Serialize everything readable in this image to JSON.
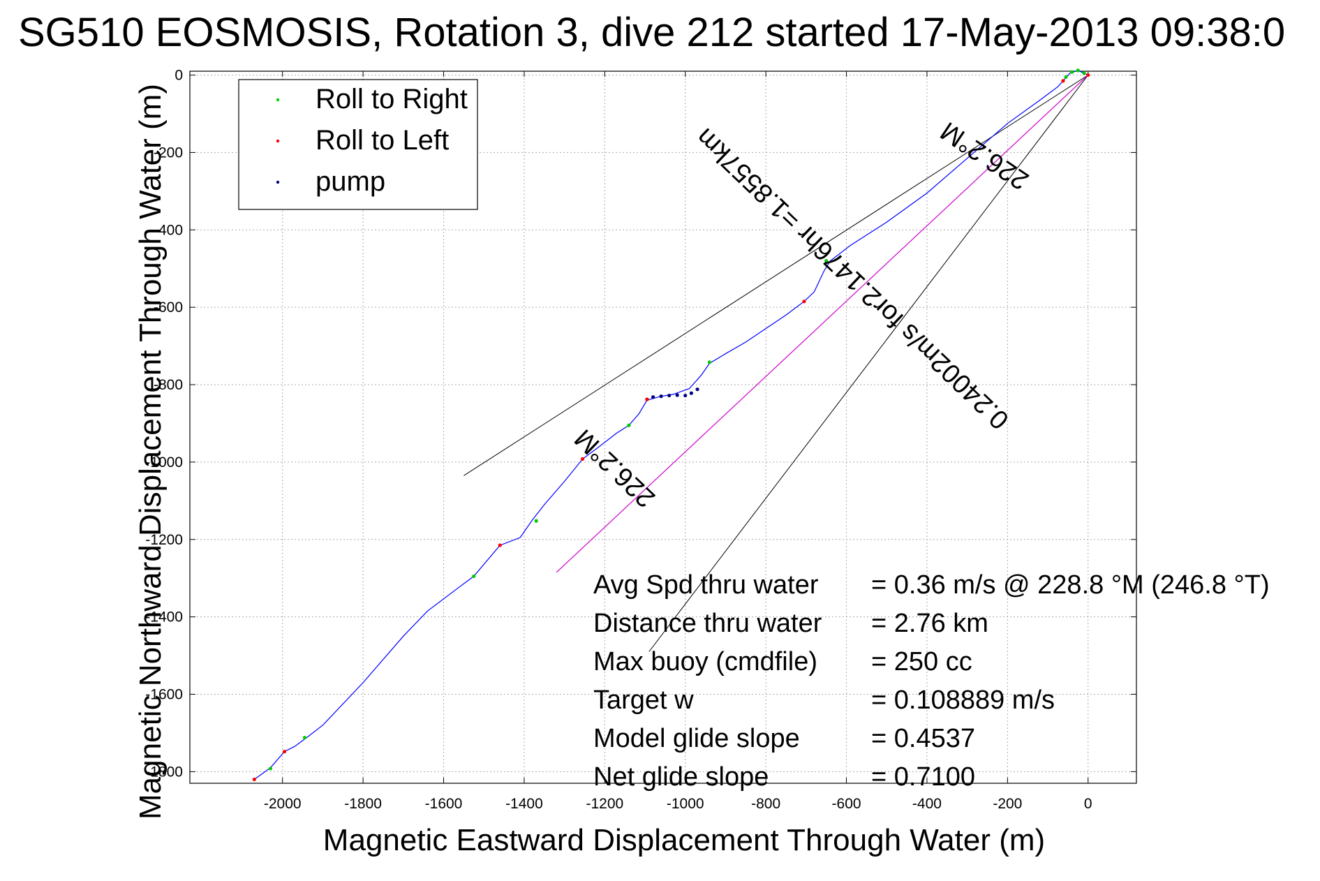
{
  "chart_data": {
    "type": "line",
    "title": "SG510 EOSMOSIS, Rotation 3, dive 212 started 17-May-2013 09:38:0",
    "xlabel": "Magnetic Eastward Displacement Through Water (m)",
    "ylabel": "Magnetic Northward Displacement Through Water (m)",
    "xlim": [
      -2230,
      120
    ],
    "ylim": [
      -1830,
      10
    ],
    "xticks": [
      -2000,
      -1800,
      -1600,
      -1400,
      -1200,
      -1000,
      -800,
      -600,
      -400,
      -200,
      0
    ],
    "yticks": [
      0,
      -200,
      -400,
      -600,
      -800,
      -1000,
      -1200,
      -1400,
      -1600,
      -1800
    ],
    "grid": true,
    "legend_position": "top-left",
    "legend": [
      {
        "label": "Roll to Right",
        "color": "#00cc00"
      },
      {
        "label": "Roll to Left",
        "color": "#ff0000"
      },
      {
        "label": "pump",
        "color": "#000080"
      }
    ],
    "colors": {
      "track": "#0000ff",
      "heading_line": "#cc00cc",
      "envelope": "#000000",
      "roll_right": "#00cc00",
      "roll_left": "#ff0000",
      "pump": "#000080"
    },
    "track": [
      [
        0,
        0
      ],
      [
        -10,
        5
      ],
      [
        -25,
        12
      ],
      [
        -45,
        5
      ],
      [
        -62,
        -15
      ],
      [
        -75,
        -30
      ],
      [
        -120,
        -65
      ],
      [
        -200,
        -125
      ],
      [
        -300,
        -215
      ],
      [
        -400,
        -305
      ],
      [
        -500,
        -380
      ],
      [
        -590,
        -440
      ],
      [
        -640,
        -480
      ],
      [
        -655,
        -505
      ],
      [
        -680,
        -560
      ],
      [
        -705,
        -585
      ],
      [
        -750,
        -620
      ],
      [
        -850,
        -690
      ],
      [
        -900,
        -720
      ],
      [
        -940,
        -745
      ],
      [
        -960,
        -775
      ],
      [
        -990,
        -810
      ],
      [
        -1030,
        -825
      ],
      [
        -1060,
        -830
      ],
      [
        -1095,
        -840
      ],
      [
        -1115,
        -875
      ],
      [
        -1140,
        -905
      ],
      [
        -1170,
        -925
      ],
      [
        -1220,
        -965
      ],
      [
        -1255,
        -992
      ],
      [
        -1300,
        -1050
      ],
      [
        -1350,
        -1110
      ],
      [
        -1380,
        -1150
      ],
      [
        -1410,
        -1195
      ],
      [
        -1460,
        -1215
      ],
      [
        -1525,
        -1295
      ],
      [
        -1570,
        -1330
      ],
      [
        -1640,
        -1385
      ],
      [
        -1700,
        -1450
      ],
      [
        -1800,
        -1570
      ],
      [
        -1900,
        -1680
      ],
      [
        -1940,
        -1712
      ],
      [
        -1970,
        -1735
      ],
      [
        -1995,
        -1748
      ],
      [
        -2030,
        -1790
      ],
      [
        -2070,
        -1820
      ]
    ],
    "heading_line": [
      [
        0,
        0
      ],
      [
        -1320,
        -1285
      ]
    ],
    "envelope_lines": [
      [
        [
          0,
          0
        ],
        [
          -1550,
          -1035
        ]
      ],
      [
        [
          0,
          0
        ],
        [
          -1090,
          -1490
        ]
      ]
    ],
    "roll_right_points": [
      [
        -10,
        5
      ],
      [
        -25,
        12
      ],
      [
        -40,
        8
      ],
      [
        -55,
        -5
      ],
      [
        -650,
        -480
      ],
      [
        -940,
        -742
      ],
      [
        -1140,
        -905
      ],
      [
        -1370,
        -1152
      ],
      [
        -1525,
        -1295
      ],
      [
        -1945,
        -1712
      ],
      [
        -2030,
        -1792
      ]
    ],
    "roll_left_points": [
      [
        0,
        0
      ],
      [
        -62,
        -15
      ],
      [
        -705,
        -585
      ],
      [
        -1095,
        -838
      ],
      [
        -1255,
        -992
      ],
      [
        -1460,
        -1215
      ],
      [
        -1995,
        -1748
      ],
      [
        -2070,
        -1820
      ]
    ],
    "pump_points": [
      [
        -1095,
        -838
      ],
      [
        -1080,
        -832
      ],
      [
        -1060,
        -830
      ],
      [
        -1040,
        -828
      ],
      [
        -1020,
        -827
      ],
      [
        -1000,
        -828
      ],
      [
        -985,
        -822
      ],
      [
        -970,
        -812
      ]
    ],
    "annotations": [
      {
        "text": "226.2°M",
        "x": -1160,
        "y": -1000,
        "rotate": 223.8
      },
      {
        "text": "226.2°M",
        "x": -245,
        "y": -190,
        "rotate": 213.8
      },
      {
        "text": "0.24002m/s for2.1476hr =1.8557km",
        "x": -570,
        "y": -510,
        "rotate": 223.8
      }
    ],
    "stats": [
      {
        "label": "Avg Spd thru water",
        "value": "=  0.36 m/s @ 228.8 °M (246.8 °T)"
      },
      {
        "label": "Distance thru water",
        "value": "=  2.76 km"
      },
      {
        "label": "Max buoy (cmdfile)",
        "value": "= 250 cc"
      },
      {
        "label": "Target w",
        "value": "= 0.108889 m/s"
      },
      {
        "label": "Model glide slope",
        "value": "= 0.4537"
      },
      {
        "label": "Net glide slope",
        "value": "= 0.7100"
      }
    ]
  }
}
